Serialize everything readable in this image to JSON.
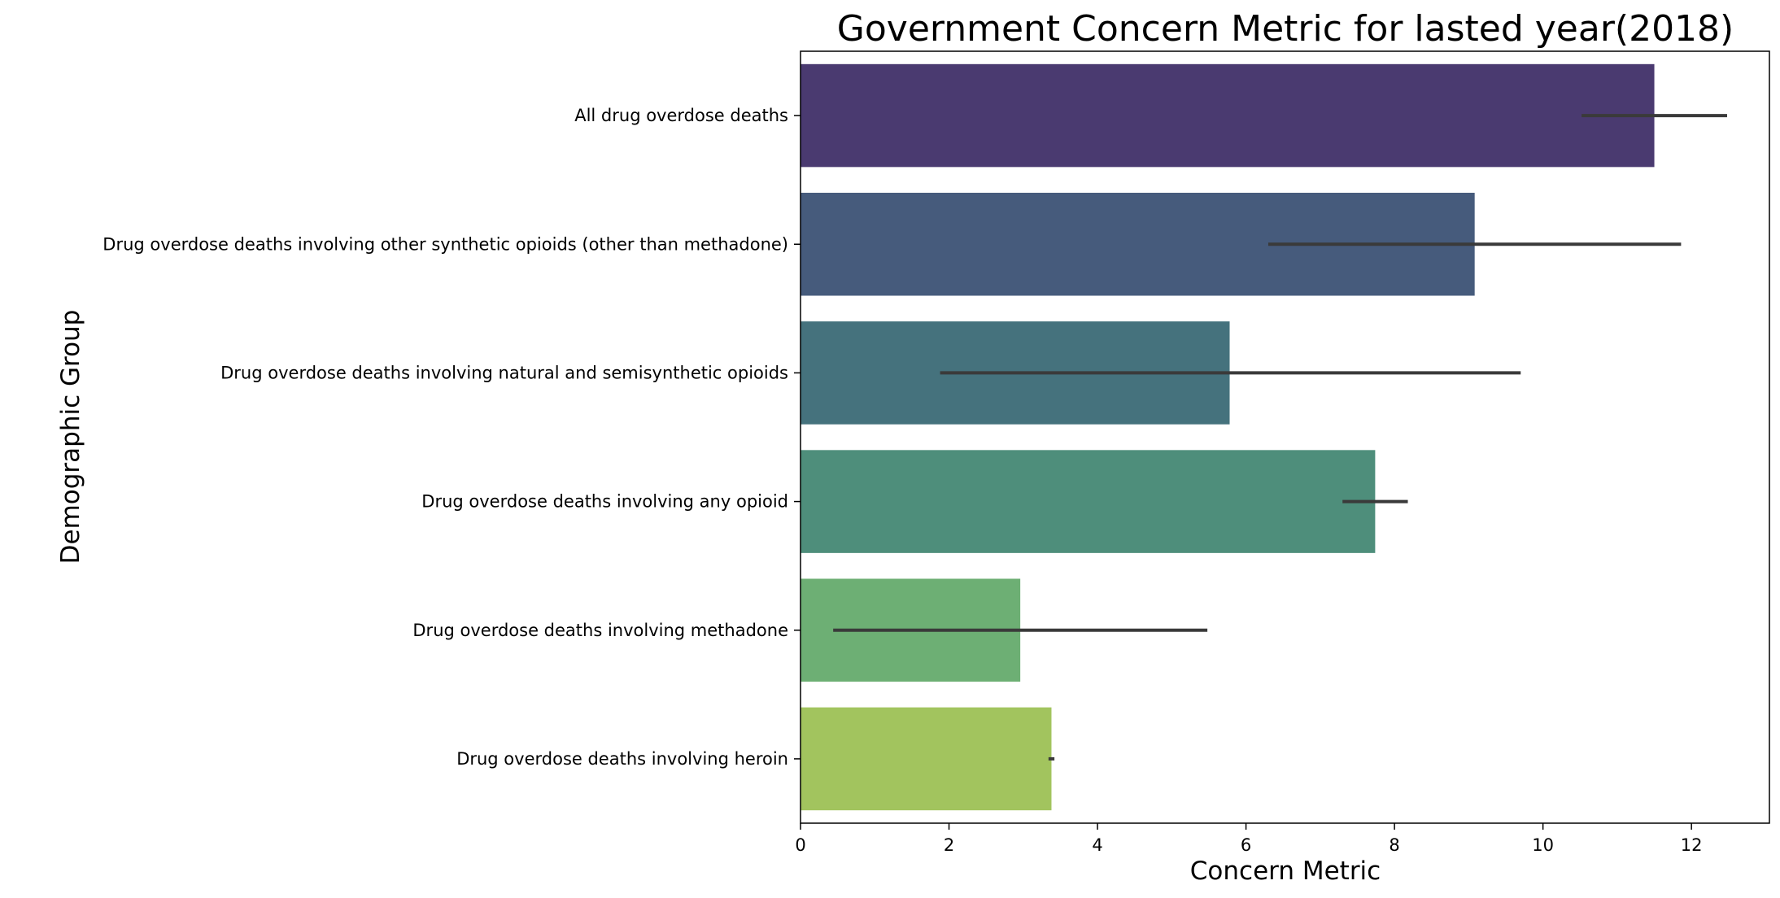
{
  "chart_data": {
    "type": "bar",
    "orientation": "horizontal",
    "title": "Government Concern Metric for lasted year(2018)",
    "xlabel": "Concern Metric",
    "ylabel": "Demographic Group",
    "xlim": [
      0,
      13.05
    ],
    "xticks": [
      0,
      2,
      4,
      6,
      8,
      10,
      12
    ],
    "grid": false,
    "categories": [
      "All drug overdose deaths",
      "Drug overdose deaths involving other synthetic opioids (other than methadone)",
      "Drug overdose deaths involving natural and semisynthetic opioids",
      "Drug overdose deaths involving any opioid",
      "Drug overdose deaths involving methadone",
      "Drug overdose deaths involving heroin"
    ],
    "values": [
      11.5,
      9.08,
      5.78,
      7.74,
      2.96,
      3.38
    ],
    "error_low": [
      10.52,
      6.3,
      1.88,
      7.3,
      0.44,
      3.34
    ],
    "error_high": [
      12.48,
      11.86,
      9.7,
      8.18,
      5.48,
      3.42
    ],
    "colors": [
      "#4a3a70",
      "#465b7c",
      "#45727d",
      "#4e8e7b",
      "#6daf74",
      "#a2c45e"
    ],
    "error_color": "#3a3a3a"
  }
}
